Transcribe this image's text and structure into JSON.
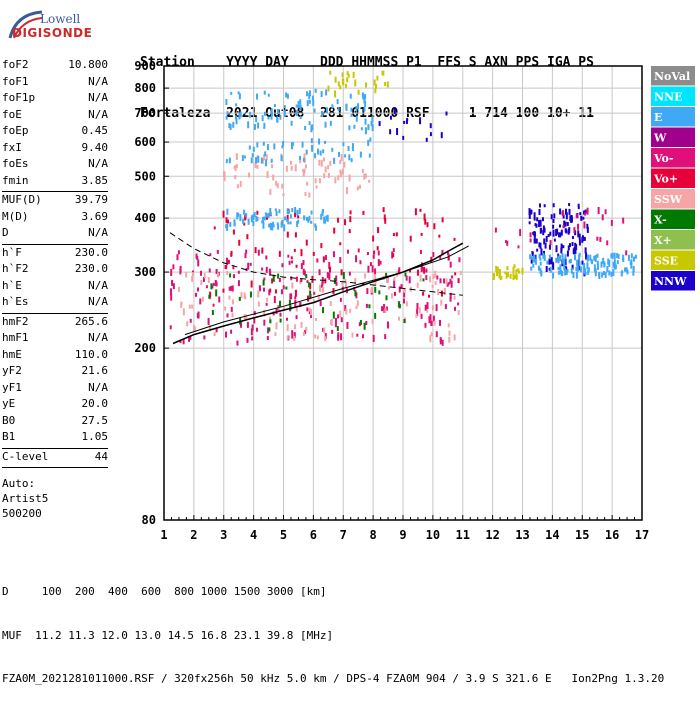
{
  "logo": {
    "line1": "Lowell",
    "line2": "DIGISONDE"
  },
  "header": {
    "row1": "Station    YYYY DAY    DDD HHMMSS P1  FFS S AXN PPS IGA PS",
    "row2": "Fortaleza  2021 Out08  281 011000 RSF     1 714 100 10+ 11"
  },
  "params": {
    "group1": [
      {
        "label": "foF2",
        "value": "10.800"
      },
      {
        "label": "foF1",
        "value": "N/A"
      },
      {
        "label": "foF1p",
        "value": "N/A"
      },
      {
        "label": "foE",
        "value": "N/A"
      },
      {
        "label": "foEp",
        "value": "0.45"
      },
      {
        "label": "fxI",
        "value": "9.40"
      },
      {
        "label": "foEs",
        "value": "N/A"
      },
      {
        "label": "fmin",
        "value": "3.85"
      }
    ],
    "group2": [
      {
        "label": "MUF(D)",
        "value": "39.79"
      },
      {
        "label": "M(D)",
        "value": "3.69"
      },
      {
        "label": "D",
        "value": "N/A"
      }
    ],
    "group3": [
      {
        "label": "h`F",
        "value": "230.0"
      },
      {
        "label": "h`F2",
        "value": "230.0"
      },
      {
        "label": "h`E",
        "value": "N/A"
      },
      {
        "label": "h`Es",
        "value": "N/A"
      }
    ],
    "group4": [
      {
        "label": "hmF2",
        "value": "265.6"
      },
      {
        "label": "hmF1",
        "value": "N/A"
      },
      {
        "label": "hmE",
        "value": "110.0"
      },
      {
        "label": "yF2",
        "value": "21.6"
      },
      {
        "label": "yF1",
        "value": "N/A"
      },
      {
        "label": "yE",
        "value": "20.0"
      },
      {
        "label": "B0",
        "value": "27.5"
      },
      {
        "label": "B1",
        "value": "1.05"
      }
    ],
    "group5": [
      {
        "label": "C-level",
        "value": "44"
      }
    ],
    "auto": [
      "Auto:",
      "Artist5",
      "500200"
    ]
  },
  "legend": [
    {
      "label": "NoVal",
      "color": "#8c8c8c"
    },
    {
      "label": "NNE",
      "color": "#00e5ff"
    },
    {
      "label": "E",
      "color": "#3fa9f5"
    },
    {
      "label": "W",
      "color": "#a0008c"
    },
    {
      "label": "Vo-",
      "color": "#e0107a"
    },
    {
      "label": "Vo+",
      "color": "#e8003a"
    },
    {
      "label": "SSW",
      "color": "#f5a5a5"
    },
    {
      "label": "X-",
      "color": "#007a00"
    },
    {
      "label": "X+",
      "color": "#8fbf4f"
    },
    {
      "label": "SSE",
      "color": "#c8c800"
    },
    {
      "label": "NNW",
      "color": "#1a00c8"
    }
  ],
  "chart_data": {
    "type": "scatter",
    "xlim": [
      1,
      17
    ],
    "ylim": [
      80,
      900
    ],
    "x_ticks": [
      "1",
      "2",
      "3",
      "4",
      "5",
      "6",
      "7",
      "8",
      "9",
      "10",
      "11",
      "12",
      "13",
      "14",
      "15",
      "16",
      "17"
    ],
    "y_ticks": [
      "80",
      "200",
      "300",
      "400",
      "500",
      "600",
      "700",
      "800",
      "900"
    ],
    "y_scale": "log",
    "grid": true,
    "traces": [
      {
        "name": "F-trace O",
        "points": [
          [
            1.3,
            205
          ],
          [
            2,
            215
          ],
          [
            3,
            225
          ],
          [
            4,
            235
          ],
          [
            5,
            245
          ],
          [
            6,
            255
          ],
          [
            7,
            270
          ],
          [
            8,
            285
          ],
          [
            9,
            300
          ],
          [
            10,
            320
          ],
          [
            10.5,
            335
          ],
          [
            11,
            350
          ]
        ]
      },
      {
        "name": "F-trace X",
        "points": [
          [
            1.7,
            215
          ],
          [
            3,
            230
          ],
          [
            5,
            250
          ],
          [
            7,
            275
          ],
          [
            9,
            300
          ],
          [
            10.5,
            325
          ],
          [
            11.2,
            345
          ]
        ]
      }
    ],
    "profile_dashed": [
      [
        1.2,
        370
      ],
      [
        2,
        340
      ],
      [
        3,
        315
      ],
      [
        4,
        300
      ],
      [
        5,
        292
      ],
      [
        6,
        288
      ],
      [
        7,
        285
      ],
      [
        8,
        280
      ],
      [
        9,
        275
      ],
      [
        10,
        270
      ],
      [
        11,
        265
      ]
    ],
    "clusters": [
      {
        "x": [
          1.2,
          11.0
        ],
        "y": [
          205,
          340
        ],
        "color": "#e0107a",
        "n": 240
      },
      {
        "x": [
          1.5,
          11.0
        ],
        "y": [
          210,
          300
        ],
        "color": "#f5a5a5",
        "n": 120
      },
      {
        "x": [
          2.5,
          11.0
        ],
        "y": [
          260,
          420
        ],
        "color": "#e8003a",
        "n": 90
      },
      {
        "x": [
          2.5,
          10.0
        ],
        "y": [
          220,
          300
        ],
        "color": "#007a00",
        "n": 40
      },
      {
        "x": [
          3.0,
          6.5
        ],
        "y": [
          380,
          420
        ],
        "color": "#3fa9f5",
        "n": 70
      },
      {
        "x": [
          3.0,
          8.0
        ],
        "y": [
          450,
          560
        ],
        "color": "#f5a5a5",
        "n": 70
      },
      {
        "x": [
          3.0,
          8.0
        ],
        "y": [
          540,
          610
        ],
        "color": "#3fa9f5",
        "n": 50
      },
      {
        "x": [
          3.0,
          8.0
        ],
        "y": [
          640,
          790
        ],
        "color": "#3fa9f5",
        "n": 90
      },
      {
        "x": [
          6.5,
          8.5
        ],
        "y": [
          780,
          880
        ],
        "color": "#c8c800",
        "n": 25
      },
      {
        "x": [
          8.0,
          10.5
        ],
        "y": [
          600,
          720
        ],
        "color": "#1a00c8",
        "n": 15
      },
      {
        "x": [
          13.2,
          15.2
        ],
        "y": [
          300,
          430
        ],
        "color": "#1a00c8",
        "n": 130
      },
      {
        "x": [
          13.2,
          16.8
        ],
        "y": [
          295,
          330
        ],
        "color": "#3fa9f5",
        "n": 120
      },
      {
        "x": [
          12.0,
          13.0
        ],
        "y": [
          290,
          310
        ],
        "color": "#c8c800",
        "n": 25
      },
      {
        "x": [
          12.0,
          16.8
        ],
        "y": [
          330,
          430
        ],
        "color": "#e0107a",
        "n": 25
      }
    ]
  },
  "footer": {
    "line1": "D     100  200  400  600  800 1000 1500 3000 [km]",
    "line2": "MUF  11.2 11.3 12.0 13.0 14.5 16.8 23.1 39.8 [MHz]",
    "line3": "FZA0M_2021281011000.RSF / 320fx256h 50 kHz 5.0 km / DPS-4 FZA0M 904 / 3.9 S 321.6 E   Ion2Png 1.3.20"
  }
}
